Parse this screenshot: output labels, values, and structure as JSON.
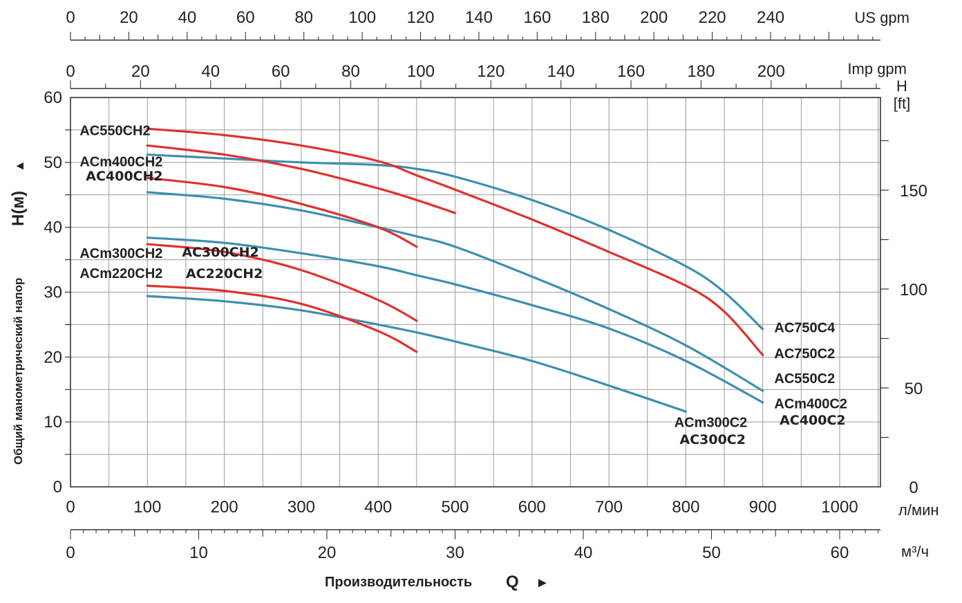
{
  "chart_data": {
    "type": "line",
    "ylabel": "Общий манометрический напор",
    "ylabel_symbol": "H(м)",
    "ylabel_arrow": "▲",
    "xlabel": "Производительность",
    "xlabel_symbol": "Q",
    "xlabel_arrow": "►",
    "grid": true,
    "xlim": [
      0,
      1050
    ],
    "ylim": [
      0,
      60
    ],
    "axes": {
      "x_lmin": {
        "unit": "л/мин",
        "ticks": [
          0,
          100,
          200,
          300,
          400,
          500,
          600,
          700,
          800,
          900,
          1000
        ]
      },
      "x_m3h": {
        "unit": "м³/ч",
        "ticks": [
          0,
          10,
          20,
          30,
          40,
          50,
          60
        ]
      },
      "x_usgpm": {
        "unit": "US gpm",
        "ticks": [
          0,
          20,
          40,
          60,
          80,
          100,
          120,
          140,
          160,
          180,
          200,
          220,
          240
        ]
      },
      "x_impgpm": {
        "unit": "Imp gpm",
        "ticks": [
          0,
          20,
          40,
          60,
          80,
          100,
          120,
          140,
          160,
          180,
          200
        ]
      },
      "y_m": {
        "ticks": [
          0,
          10,
          20,
          30,
          40,
          50,
          60
        ]
      },
      "y_ft": {
        "unit_top": "H",
        "unit_bottom": "[ft]",
        "ticks": [
          0,
          50,
          100,
          150
        ]
      }
    },
    "series": [
      {
        "name": "AC750C4",
        "color": "#3b8fb0",
        "x": [
          100,
          200,
          300,
          400,
          450,
          500,
          600,
          700,
          800,
          850,
          900
        ],
        "y": [
          51.2,
          50.6,
          50.0,
          49.6,
          49.0,
          47.8,
          44.2,
          39.6,
          34.0,
          30.0,
          24.3
        ]
      },
      {
        "name": "AC750C2",
        "color": "#e03030",
        "x": [
          100,
          200,
          300,
          400,
          450,
          500,
          600,
          700,
          800,
          850,
          900
        ],
        "y": [
          55.2,
          54.2,
          52.6,
          50.2,
          48.0,
          45.8,
          41.2,
          36.2,
          31.0,
          27.0,
          20.3
        ]
      },
      {
        "name": "AC550C2",
        "color": "#3b8fb0",
        "x": [
          100,
          200,
          300,
          400,
          450,
          500,
          600,
          700,
          800,
          900
        ],
        "y": [
          45.4,
          44.4,
          42.6,
          40.0,
          38.6,
          37.0,
          32.4,
          27.4,
          21.8,
          14.8
        ]
      },
      {
        "name": "ACm400C2 / AC400C2",
        "color": "#3b8fb0",
        "x": [
          100,
          200,
          300,
          400,
          450,
          500,
          600,
          700,
          800,
          900
        ],
        "y": [
          38.4,
          37.6,
          36.0,
          34.0,
          32.6,
          31.2,
          28.0,
          24.4,
          19.4,
          13.0
        ]
      },
      {
        "name": "ACm300C2 / AC300C2",
        "color": "#3b8fb0",
        "x": [
          100,
          200,
          300,
          400,
          450,
          500,
          600,
          700,
          800
        ],
        "y": [
          29.4,
          28.6,
          27.2,
          25.0,
          23.8,
          22.4,
          19.4,
          15.6,
          11.6
        ]
      },
      {
        "name": "AC550CH2",
        "color": "#e03030",
        "x": [
          100,
          200,
          300,
          400,
          450,
          500
        ],
        "y": [
          52.6,
          51.2,
          49.0,
          46.0,
          44.2,
          42.2
        ]
      },
      {
        "name": "ACm400CH2 / AC400CH2",
        "color": "#e03030",
        "x": [
          100,
          200,
          300,
          400,
          450
        ],
        "y": [
          47.6,
          46.2,
          43.6,
          40.0,
          37.0
        ]
      },
      {
        "name": "ACm300CH2 / AC300CH2",
        "color": "#e03030",
        "x": [
          100,
          200,
          300,
          400,
          450
        ],
        "y": [
          37.4,
          36.2,
          33.4,
          28.8,
          25.6
        ]
      },
      {
        "name": "ACm220CH2 / AC220CH2",
        "color": "#e03030",
        "x": [
          100,
          200,
          300,
          400,
          450
        ],
        "y": [
          31.0,
          30.2,
          28.2,
          24.0,
          20.8
        ]
      }
    ],
    "labels": [
      {
        "text": "AC550CH2",
        "x": 12,
        "y": 54.2,
        "anchor": "start",
        "style": "dark"
      },
      {
        "text": "ACm400CH2",
        "x": 12,
        "y": 49.4,
        "anchor": "start",
        "style": "dark"
      },
      {
        "text": "AC400CH2",
        "x": 20,
        "y": 47.2,
        "anchor": "start",
        "style": "alt"
      },
      {
        "text": "ACm300CH2",
        "x": 12,
        "y": 35.3,
        "anchor": "start",
        "style": "dark"
      },
      {
        "text": "AC300CH2",
        "x": 145,
        "y": 35.5,
        "anchor": "start",
        "style": "alt"
      },
      {
        "text": "ACm220CH2",
        "x": 12,
        "y": 32.2,
        "anchor": "start",
        "style": "dark"
      },
      {
        "text": "AC220CH2",
        "x": 150,
        "y": 32.2,
        "anchor": "start",
        "style": "alt"
      },
      {
        "text": "AC750C4",
        "x": 915,
        "y": 23.8,
        "anchor": "start",
        "style": "dark"
      },
      {
        "text": "AC750C2",
        "x": 915,
        "y": 19.8,
        "anchor": "start",
        "style": "dark"
      },
      {
        "text": "AC550C2",
        "x": 915,
        "y": 16.0,
        "anchor": "start",
        "style": "dark"
      },
      {
        "text": "ACm400C2",
        "x": 915,
        "y": 12.1,
        "anchor": "start",
        "style": "dark"
      },
      {
        "text": "AC400C2",
        "x": 922,
        "y": 9.6,
        "anchor": "start",
        "style": "alt"
      },
      {
        "text": "ACm300C2",
        "x": 785,
        "y": 9.2,
        "anchor": "start",
        "style": "dark"
      },
      {
        "text": "AC300C2",
        "x": 792,
        "y": 6.6,
        "anchor": "start",
        "style": "alt"
      }
    ]
  }
}
